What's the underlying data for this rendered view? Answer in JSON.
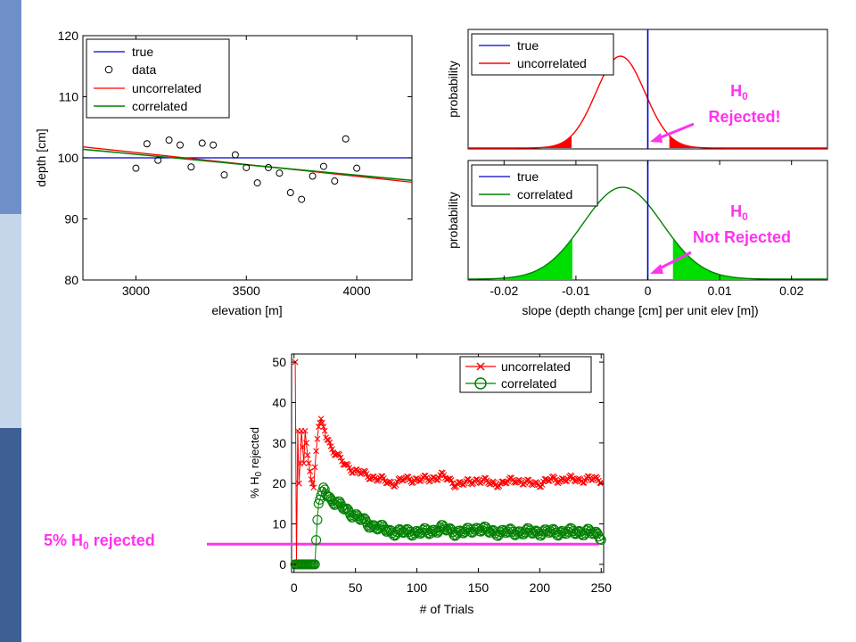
{
  "theme": {
    "sidebar_colors": [
      "#6f8fc8",
      "#c6d6ea",
      "#3d5f94"
    ],
    "magenta": "#ff33ee",
    "true_color": "#0000cc",
    "uncorrelated_color": "#ff0000",
    "correlated_color": "#008000",
    "light_green": "#00dd00"
  },
  "annotations": {
    "rejected_h": "H",
    "rejected_sub": "0",
    "rejected_text": "Rejected!",
    "not_rejected_h": "H",
    "not_rejected_sub": "0",
    "not_rejected_text": "Not Rejected",
    "five_pct_pre": "5% H",
    "five_pct_sub": "0",
    "five_pct_post": " rejected"
  },
  "chart_data": [
    {
      "type": "scatter",
      "title": "",
      "xlabel": "elevation [m]",
      "ylabel": "depth [cm]",
      "xlim": [
        2760,
        4250
      ],
      "ylim": [
        80,
        120
      ],
      "xticks": [
        3000,
        3500,
        4000
      ],
      "yticks": [
        80,
        90,
        100,
        110,
        120
      ],
      "legend": {
        "position": "top-left",
        "entries": [
          "true",
          "data",
          "uncorrelated",
          "correlated"
        ]
      },
      "data_points": [
        [
          3000,
          98.3
        ],
        [
          3050,
          102.3
        ],
        [
          3100,
          99.6
        ],
        [
          3150,
          102.9
        ],
        [
          3200,
          102.1
        ],
        [
          3250,
          98.5
        ],
        [
          3300,
          102.4
        ],
        [
          3350,
          102.1
        ],
        [
          3400,
          97.2
        ],
        [
          3450,
          100.5
        ],
        [
          3500,
          98.4
        ],
        [
          3550,
          95.9
        ],
        [
          3600,
          98.4
        ],
        [
          3650,
          97.5
        ],
        [
          3700,
          94.3
        ],
        [
          3750,
          93.2
        ],
        [
          3800,
          97.0
        ],
        [
          3850,
          98.6
        ],
        [
          3900,
          96.2
        ],
        [
          3950,
          103.1
        ],
        [
          4000,
          98.3
        ]
      ],
      "lines": [
        {
          "name": "true",
          "x": [
            2760,
            4250
          ],
          "y": [
            100,
            100
          ]
        },
        {
          "name": "uncorrelated",
          "x": [
            2760,
            4250
          ],
          "y": [
            101.8,
            96.0
          ]
        },
        {
          "name": "correlated",
          "x": [
            2760,
            4250
          ],
          "y": [
            101.4,
            96.3
          ]
        }
      ]
    },
    {
      "type": "area",
      "title": "",
      "xlabel": "",
      "ylabel": "probability",
      "xlim": [
        -0.025,
        0.025
      ],
      "legend": {
        "position": "top-left",
        "entries": [
          "true",
          "uncorrelated"
        ]
      },
      "true_value": 0,
      "curve": {
        "name": "uncorrelated",
        "mean": -0.0038,
        "sd": 0.0034
      },
      "rejection_tails": [
        -0.0106,
        0.003
      ]
    },
    {
      "type": "area",
      "title": "",
      "xlabel": "slope (depth change [cm] per unit elev [m])",
      "ylabel": "probability",
      "xlim": [
        -0.025,
        0.025
      ],
      "xticks": [
        -0.02,
        -0.01,
        0,
        0.01,
        0.02
      ],
      "xticklabels": [
        "-0.02",
        "-0.01",
        "0",
        "0.01",
        "0.02"
      ],
      "legend": {
        "position": "top-left",
        "entries": [
          "true",
          "correlated"
        ]
      },
      "true_value": 0,
      "curve": {
        "name": "correlated",
        "mean": -0.0035,
        "sd": 0.0055
      },
      "rejection_tails": [
        -0.0105,
        0.0035
      ]
    },
    {
      "type": "line",
      "title": "",
      "xlabel": "# of Trials",
      "ylabel_pre": "% H",
      "ylabel_sub": "0",
      "ylabel_post": " rejected",
      "xlim": [
        -2,
        252
      ],
      "ylim": [
        -2,
        52
      ],
      "xticks": [
        0,
        50,
        100,
        150,
        200,
        250
      ],
      "yticks": [
        0,
        10,
        20,
        30,
        40,
        50
      ],
      "legend": {
        "position": "top-right",
        "entries": [
          "uncorrelated",
          "correlated"
        ]
      },
      "reference_line": {
        "label": "5% H0 rejected",
        "y": 5
      },
      "series": [
        {
          "name": "uncorrelated",
          "x": [
            1,
            2,
            3,
            4,
            5,
            6,
            7,
            8,
            9,
            10,
            11,
            12,
            13,
            14,
            15,
            16,
            17,
            18,
            20,
            22,
            24,
            26,
            28,
            30,
            35,
            40,
            45,
            50,
            60,
            70,
            80,
            90,
            100,
            110,
            120,
            130,
            140,
            150,
            160,
            170,
            180,
            190,
            200,
            210,
            220,
            230,
            240,
            250
          ],
          "y": [
            50,
            0,
            33,
            20,
            25,
            33,
            29,
            25,
            33,
            30,
            27,
            25,
            23,
            21,
            20,
            19,
            24,
            28,
            34,
            36,
            34,
            32,
            31,
            29,
            27,
            25,
            24,
            23,
            22,
            21,
            20,
            21,
            21,
            21,
            22,
            20,
            20,
            21,
            20,
            20,
            21,
            20,
            20,
            21,
            21,
            21,
            21,
            21
          ]
        },
        {
          "name": "correlated",
          "x": [
            1,
            2,
            3,
            4,
            5,
            6,
            7,
            8,
            9,
            10,
            11,
            12,
            13,
            14,
            15,
            16,
            17,
            18,
            19,
            20,
            22,
            24,
            26,
            28,
            30,
            35,
            40,
            45,
            50,
            60,
            70,
            80,
            90,
            100,
            110,
            120,
            130,
            140,
            150,
            160,
            170,
            180,
            190,
            200,
            210,
            220,
            230,
            240,
            250
          ],
          "y": [
            0,
            0,
            0,
            0,
            0,
            0,
            0,
            0,
            0,
            0,
            0,
            0,
            0,
            0,
            0,
            0,
            0,
            6,
            11,
            15,
            17,
            19,
            18,
            17,
            16,
            15,
            14,
            13,
            12,
            10,
            9,
            8,
            8,
            8,
            8,
            9,
            8,
            8,
            9,
            8,
            8,
            8,
            8,
            8,
            8,
            8,
            8,
            8,
            7
          ]
        }
      ]
    }
  ]
}
